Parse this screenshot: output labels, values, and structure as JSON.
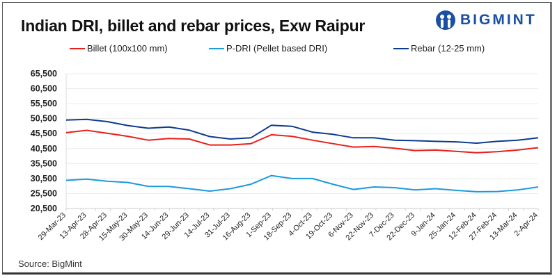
{
  "chart_data": {
    "type": "line",
    "title": "Indian DRI, billet and rebar prices, Exw Raipur",
    "xlabel": "",
    "ylabel": "",
    "ylim": [
      20500,
      65500
    ],
    "yticks": [
      "20,500",
      "25,500",
      "30,500",
      "35,500",
      "40,500",
      "45,500",
      "50,500",
      "55,500",
      "60,500",
      "65,500"
    ],
    "ytick_values": [
      20500,
      25500,
      30500,
      35500,
      40500,
      45500,
      50500,
      55500,
      60500,
      65500
    ],
    "grid": true,
    "legend": "top",
    "categories": [
      "29-Mar-23",
      "13-Apr-23",
      "28-Apr-23",
      "15-May-23",
      "30-May-23",
      "14-Jun-23",
      "29-Jun-23",
      "14-Jul-23",
      "31-Jul-23",
      "16-Aug-23",
      "1-Sep-23",
      "18-Sep-23",
      "4-Oct-23",
      "19-Oct-23",
      "6-Nov-23",
      "22-Nov-23",
      "7-Dec-23",
      "22-Dec-23",
      "9-Jan-24",
      "25-Jan-24",
      "12-Feb-24",
      "27-Feb-24",
      "13-Mar-24",
      "2-Apr-24"
    ],
    "series": [
      {
        "name": "Billet (100x100 mm)",
        "color": "#e8201c",
        "values": [
          45800,
          46600,
          45600,
          44600,
          43300,
          43850,
          43700,
          41700,
          41700,
          42150,
          45100,
          44600,
          43300,
          42150,
          41000,
          41200,
          40600,
          39850,
          40000,
          39600,
          39100,
          39450,
          40000,
          40800
        ]
      },
      {
        "name": "P-DRI (Pellet based DRI)",
        "color": "#1a9ae0",
        "values": [
          29900,
          30300,
          29600,
          29200,
          27900,
          27850,
          27100,
          26300,
          27100,
          28600,
          31500,
          30500,
          30500,
          28600,
          26850,
          27700,
          27450,
          26700,
          27100,
          26550,
          26100,
          26150,
          26700,
          27700
        ]
      },
      {
        "name": "Rebar (12-25 mm)",
        "color": "#0d3a8c",
        "values": [
          50000,
          50250,
          49500,
          48200,
          47300,
          47700,
          46650,
          44500,
          43700,
          44100,
          48300,
          47950,
          46000,
          45250,
          44100,
          44100,
          43300,
          43150,
          42900,
          42750,
          42300,
          42900,
          43300,
          44100
        ]
      }
    ]
  },
  "source": "Source: BigMint",
  "logo": {
    "text": "BIGMINT",
    "icon": "bigmint-people-icon",
    "color": "#1a4fa3"
  }
}
